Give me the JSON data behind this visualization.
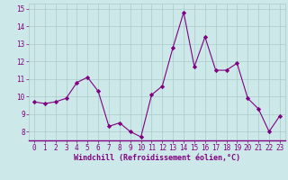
{
  "x": [
    0,
    1,
    2,
    3,
    4,
    5,
    6,
    7,
    8,
    9,
    10,
    11,
    12,
    13,
    14,
    15,
    16,
    17,
    18,
    19,
    20,
    21,
    22,
    23
  ],
  "y": [
    9.7,
    9.6,
    9.7,
    9.9,
    10.8,
    11.1,
    10.3,
    8.3,
    8.5,
    8.0,
    7.7,
    10.1,
    10.6,
    12.8,
    14.8,
    11.7,
    13.4,
    11.5,
    11.5,
    11.9,
    9.9,
    9.3,
    8.0,
    8.9
  ],
  "line_color": "#800080",
  "marker": "D",
  "marker_size": 2.2,
  "bg_color": "#cce8e8",
  "grid_color": "#aacccc",
  "xlabel": "Windchill (Refroidissement éolien,°C)",
  "xlabel_color": "#800080",
  "tick_color": "#800080",
  "ylim": [
    7.5,
    15.3
  ],
  "yticks": [
    8,
    9,
    10,
    11,
    12,
    13,
    14,
    15
  ],
  "xticks": [
    0,
    1,
    2,
    3,
    4,
    5,
    6,
    7,
    8,
    9,
    10,
    11,
    12,
    13,
    14,
    15,
    16,
    17,
    18,
    19,
    20,
    21,
    22,
    23
  ],
  "xlim": [
    -0.5,
    23.5
  ],
  "tick_fontsize": 5.5,
  "xlabel_fontsize": 6.0,
  "linewidth": 0.8
}
